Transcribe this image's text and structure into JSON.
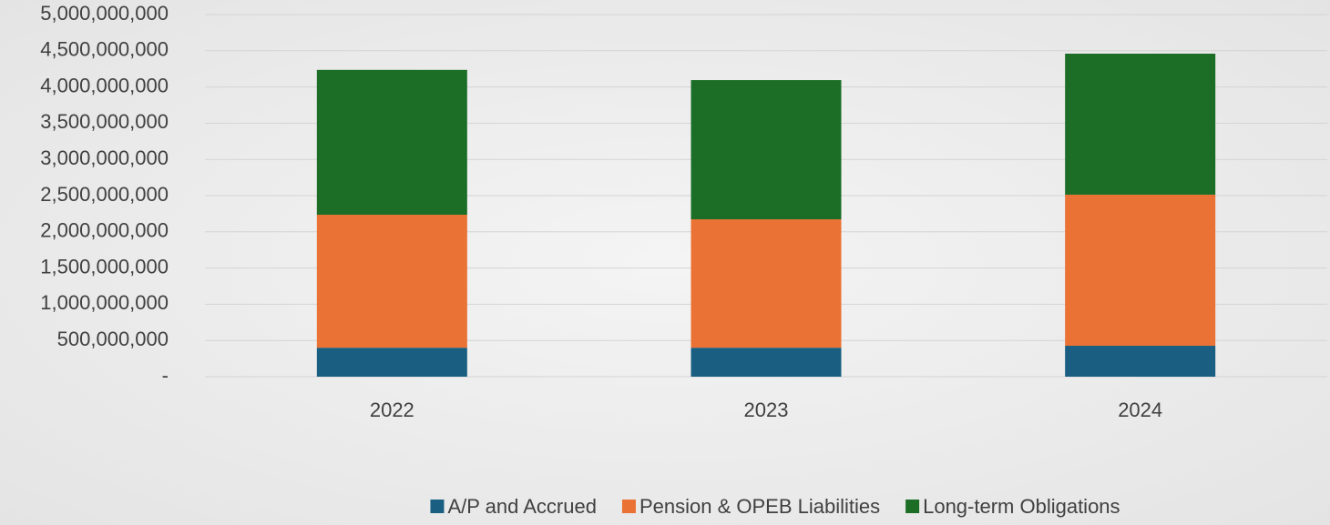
{
  "chart_data": {
    "type": "stacked_bar",
    "categories": [
      "2022",
      "2023",
      "2024"
    ],
    "series": [
      {
        "name": "A/P and Accrued",
        "color": "#1a5f82",
        "values": [
          400000000,
          400000000,
          427000000
        ]
      },
      {
        "name": "Pension & OPEB Liabilities",
        "color": "#ea7234",
        "values": [
          1836000000,
          1773000000,
          2086000000
        ]
      },
      {
        "name": "Long-term Obligations",
        "color": "#1c6e27",
        "values": [
          2000000000,
          1922000000,
          1947000000
        ]
      }
    ],
    "ylim": [
      0,
      5000000000
    ],
    "yticks": [
      {
        "value": 0,
        "label": "-"
      },
      {
        "value": 500000000,
        "label": "500,000,000"
      },
      {
        "value": 1000000000,
        "label": "1,000,000,000"
      },
      {
        "value": 1500000000,
        "label": "1,500,000,000"
      },
      {
        "value": 2000000000,
        "label": "2,000,000,000"
      },
      {
        "value": 2500000000,
        "label": "2,500,000,000"
      },
      {
        "value": 3000000000,
        "label": "3,000,000,000"
      },
      {
        "value": 3500000000,
        "label": "3,500,000,000"
      },
      {
        "value": 4000000000,
        "label": "4,000,000,000"
      },
      {
        "value": 4500000000,
        "label": "4,500,000,000"
      },
      {
        "value": 5000000000,
        "label": "5,000,000,000"
      }
    ],
    "grid": true,
    "legend": "bottom"
  }
}
